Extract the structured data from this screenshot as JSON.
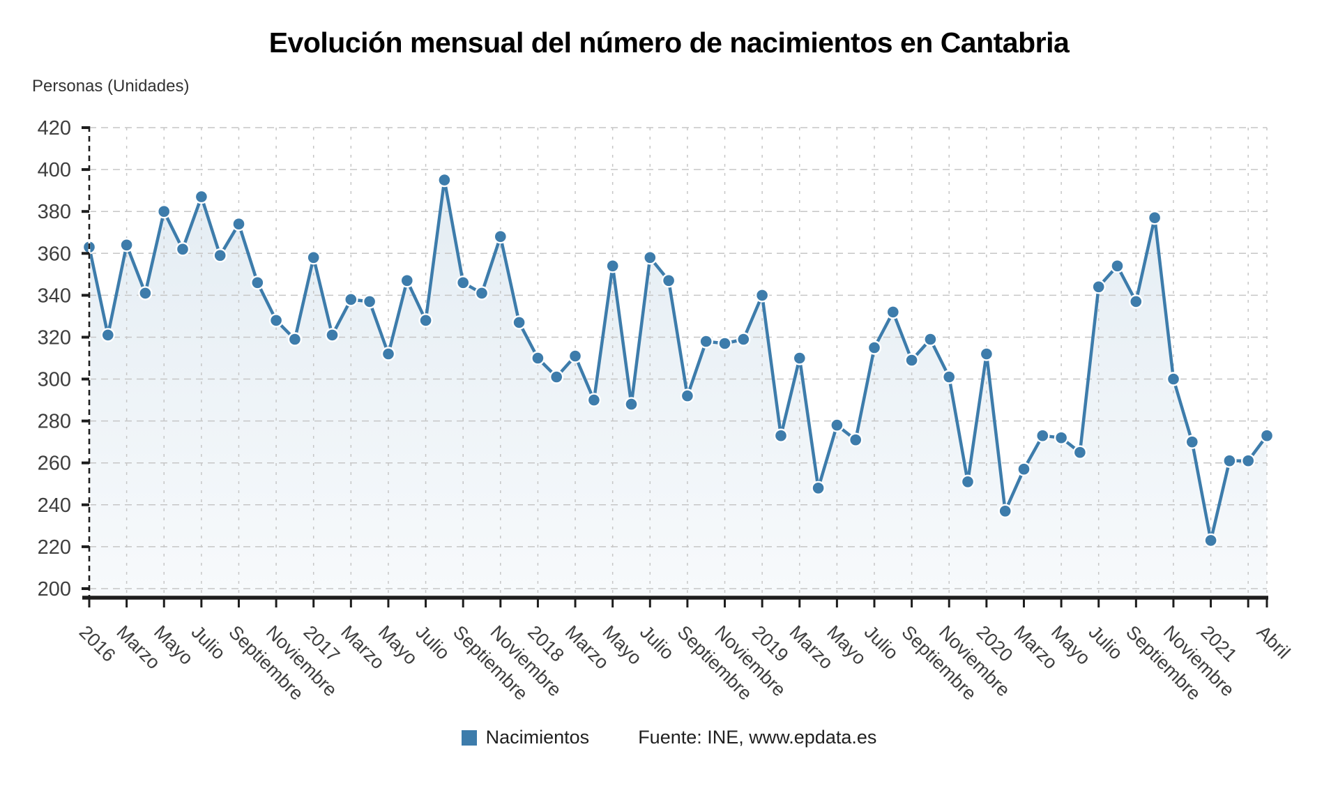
{
  "chart_data": {
    "type": "line",
    "title": "Evolución mensual del número de nacimientos en Cantabria",
    "y_axis_title": "Personas (Unidades)",
    "x_frequency": "monthly",
    "x_range": [
      "2016-01",
      "2021-04"
    ],
    "series": [
      {
        "name": "Nacimientos",
        "values": [
          363,
          321,
          364,
          341,
          380,
          362,
          387,
          359,
          374,
          346,
          328,
          319,
          358,
          321,
          338,
          337,
          312,
          347,
          328,
          395,
          346,
          341,
          368,
          327,
          310,
          301,
          311,
          290,
          354,
          288,
          358,
          347,
          292,
          318,
          317,
          319,
          340,
          273,
          310,
          248,
          278,
          271,
          315,
          332,
          309,
          319,
          301,
          251,
          312,
          237,
          257,
          273,
          272,
          265,
          344,
          354,
          337,
          377,
          300,
          270,
          223,
          261,
          261,
          273
        ]
      }
    ],
    "x_tick_labels": [
      {
        "i": 0,
        "label": "2016"
      },
      {
        "i": 2,
        "label": "Marzo"
      },
      {
        "i": 4,
        "label": "Mayo"
      },
      {
        "i": 6,
        "label": "Julio"
      },
      {
        "i": 8,
        "label": "Septiembre"
      },
      {
        "i": 10,
        "label": "Noviembre"
      },
      {
        "i": 12,
        "label": "2017"
      },
      {
        "i": 14,
        "label": "Marzo"
      },
      {
        "i": 16,
        "label": "Mayo"
      },
      {
        "i": 18,
        "label": "Julio"
      },
      {
        "i": 20,
        "label": "Septiembre"
      },
      {
        "i": 22,
        "label": "Noviembre"
      },
      {
        "i": 24,
        "label": "2018"
      },
      {
        "i": 26,
        "label": "Marzo"
      },
      {
        "i": 28,
        "label": "Mayo"
      },
      {
        "i": 30,
        "label": "Julio"
      },
      {
        "i": 32,
        "label": "Septiembre"
      },
      {
        "i": 34,
        "label": "Noviembre"
      },
      {
        "i": 36,
        "label": "2019"
      },
      {
        "i": 38,
        "label": "Marzo"
      },
      {
        "i": 40,
        "label": "Mayo"
      },
      {
        "i": 42,
        "label": "Julio"
      },
      {
        "i": 44,
        "label": "Septiembre"
      },
      {
        "i": 46,
        "label": "Noviembre"
      },
      {
        "i": 48,
        "label": "2020"
      },
      {
        "i": 50,
        "label": "Marzo"
      },
      {
        "i": 52,
        "label": "Mayo"
      },
      {
        "i": 54,
        "label": "Julio"
      },
      {
        "i": 56,
        "label": "Septiembre"
      },
      {
        "i": 58,
        "label": "Noviembre"
      },
      {
        "i": 60,
        "label": "2021"
      },
      {
        "i": 63,
        "label": "Abril"
      }
    ],
    "yticks": [
      420,
      400,
      380,
      360,
      340,
      320,
      300,
      280,
      260,
      240,
      220,
      200
    ],
    "ylim": [
      200,
      420
    ],
    "grid": true,
    "legend_position": "bottom",
    "colors": {
      "series": "#3d7cab",
      "area_top": "rgba(61,124,171,0.14)",
      "area_bottom": "rgba(61,124,171,0.04)",
      "grid": "#c6c6c6",
      "axis": "#1d1d1d",
      "tick_text": "#3e3e3e"
    }
  },
  "legend": {
    "series_label": "Nacimientos",
    "source": "Fuente: INE, www.epdata.es"
  }
}
